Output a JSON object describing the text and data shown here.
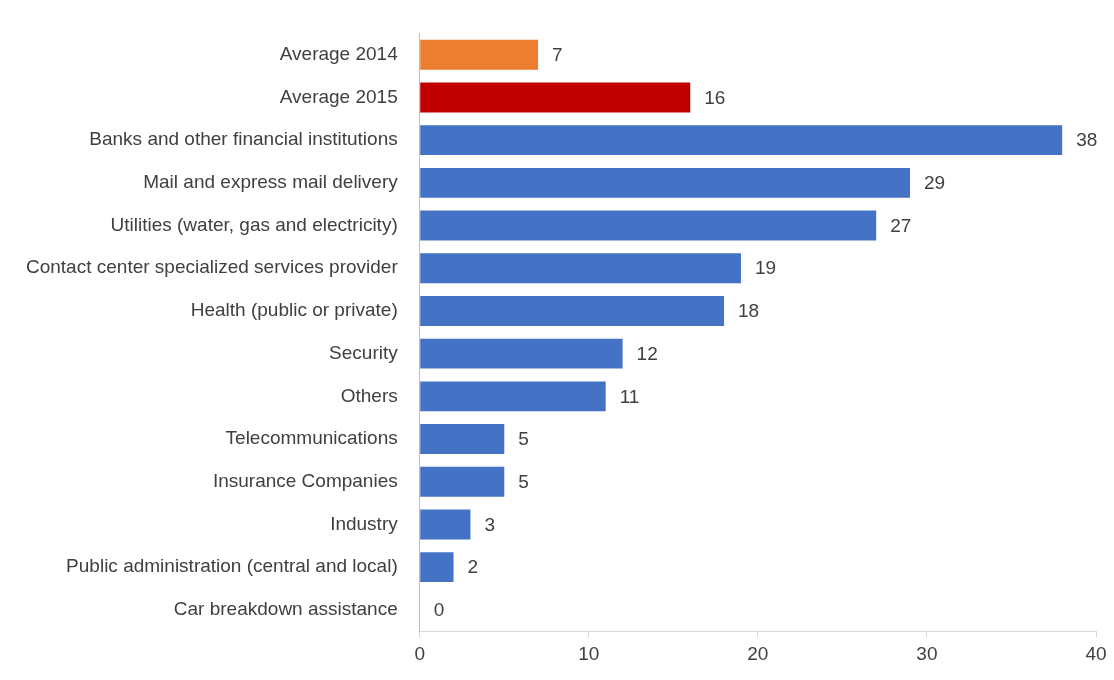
{
  "chart_data": {
    "type": "bar",
    "orientation": "horizontal",
    "categories": [
      "Average 2014",
      "Average 2015",
      "Banks and other financial institutions",
      "Mail and express mail delivery",
      "Utilities (water, gas and electricity)",
      "Contact center specialized services provider",
      "Health (public or private)",
      "Security",
      "Others",
      "Telecommunications",
      "Insurance Companies",
      "Industry",
      "Public administration (central and local)",
      "Car breakdown assistance"
    ],
    "values": [
      7,
      16,
      38,
      29,
      27,
      19,
      18,
      12,
      11,
      5,
      5,
      3,
      2,
      0
    ],
    "colors": [
      "#ed7d31",
      "#c00000",
      "#4472c4",
      "#4472c4",
      "#4472c4",
      "#4472c4",
      "#4472c4",
      "#4472c4",
      "#4472c4",
      "#4472c4",
      "#4472c4",
      "#4472c4",
      "#4472c4",
      "#4472c4"
    ],
    "xlim": [
      0,
      40
    ],
    "xticks": [
      0,
      10,
      20,
      30,
      40
    ],
    "data_labels": true
  }
}
